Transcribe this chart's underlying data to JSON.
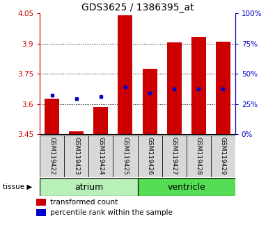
{
  "title": "GDS3625 / 1386395_at",
  "samples": [
    "GSM119422",
    "GSM119423",
    "GSM119424",
    "GSM119425",
    "GSM119426",
    "GSM119427",
    "GSM119428",
    "GSM119429"
  ],
  "red_values": [
    3.625,
    3.465,
    3.585,
    4.04,
    3.775,
    3.905,
    3.935,
    3.91
  ],
  "blue_values": [
    3.645,
    3.625,
    3.635,
    3.685,
    3.655,
    3.675,
    3.675,
    3.675
  ],
  "ymin": 3.45,
  "ymax": 4.05,
  "yticks_red": [
    3.45,
    3.6,
    3.75,
    3.9,
    4.05
  ],
  "yticks_blue": [
    0,
    25,
    50,
    75,
    100
  ],
  "gridlines": [
    3.6,
    3.75,
    3.9
  ],
  "tissue_groups": [
    {
      "label": "atrium",
      "start": 0,
      "end": 4,
      "color": "#b8f0b8"
    },
    {
      "label": "ventricle",
      "start": 4,
      "end": 8,
      "color": "#55dd55"
    }
  ],
  "bar_bottom": 3.45,
  "bar_color": "#cc0000",
  "dot_color": "#0000cc",
  "bg_color": "#d8d8d8",
  "red_axis_color": "#cc0000",
  "blue_axis_color": "#0000cc",
  "title_fontsize": 10,
  "tick_fontsize": 7.5,
  "sample_fontsize": 6.5,
  "tissue_fontsize": 9,
  "legend_fontsize": 7.5
}
